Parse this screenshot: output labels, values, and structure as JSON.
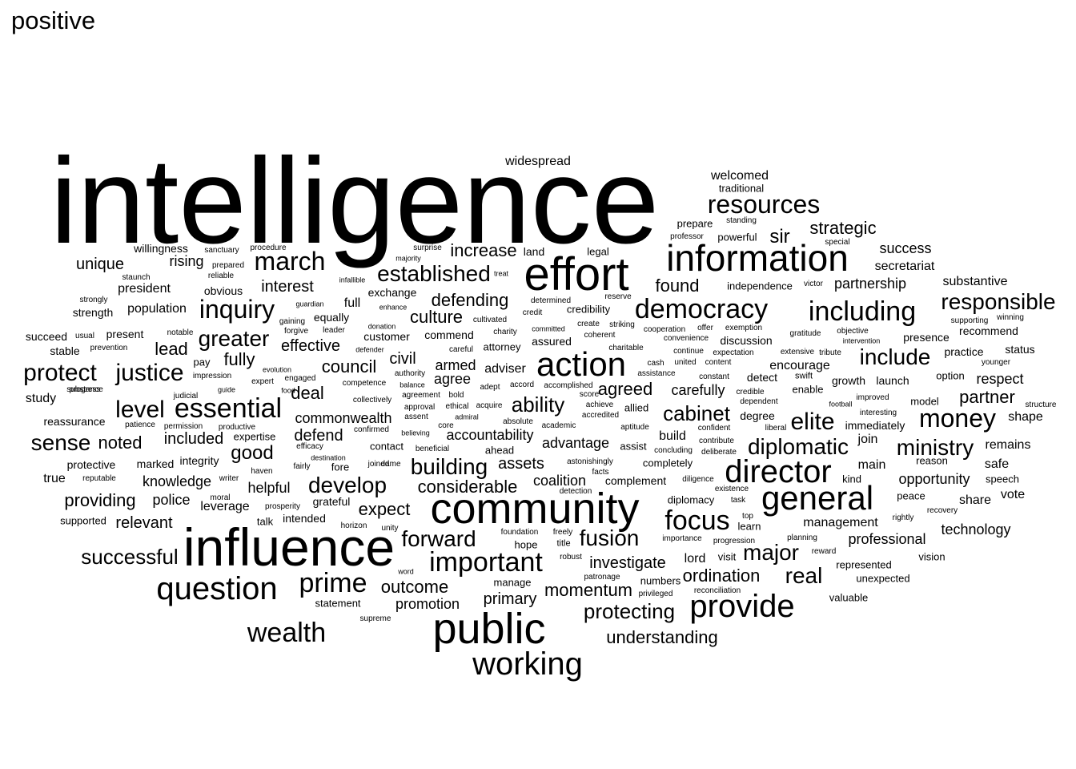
{
  "title": "positive",
  "colors": {
    "text": "#000000",
    "background": "#ffffff"
  },
  "words": [
    "intelligence",
    "influence",
    "community",
    "public",
    "effort",
    "information",
    "action",
    "general",
    "director",
    "working",
    "question",
    "provide",
    "democracy",
    "including",
    "important",
    "focus",
    "essential",
    "wealth",
    "prime",
    "inquiry",
    "march",
    "resources",
    "responsible",
    "money",
    "protect",
    "justice",
    "elite",
    "diplomatic",
    "building",
    "fusion",
    "forward",
    "level",
    "develop",
    "established",
    "major",
    "ministry",
    "real",
    "include",
    "cabinet",
    "greater",
    "ability",
    "successful",
    "sense",
    "considerable",
    "defending",
    "ordination",
    "momentum",
    "protecting",
    "outcome",
    "good",
    "sir",
    "strategic",
    "increase",
    "culture",
    "council",
    "understanding",
    "agreed",
    "carefully",
    "partner",
    "accountability",
    "noted",
    "included",
    "deal",
    "lead",
    "effective",
    "fully",
    "interest",
    "unique",
    "rising",
    "expect",
    "helpful",
    "knowledge",
    "providing",
    "relevant",
    "leverage",
    "police",
    "defend",
    "commonwealth",
    "investigate",
    "primary",
    "promotion",
    "coalition",
    "complement",
    "assets",
    "advantage",
    "adviser",
    "armed",
    "agree",
    "civil",
    "partnership",
    "found",
    "success",
    "secretariat",
    "substantive",
    "respect",
    "professional",
    "technology",
    "opportunity",
    "safe",
    "share",
    "vote",
    "management",
    "join",
    "build",
    "encourage",
    "president",
    "population",
    "strength",
    "present",
    "succeed",
    "stable",
    "study",
    "reassurance",
    "protective",
    "marked",
    "integrity",
    "true",
    "supported",
    "talk",
    "intended",
    "grateful",
    "equally",
    "obvious",
    "full",
    "exchange",
    "customer",
    "commend",
    "attorney",
    "assured",
    "credibility",
    "legal",
    "land",
    "widespread",
    "welcomed",
    "traditional",
    "powerful",
    "prepare",
    "independence",
    "discussion",
    "presence",
    "recommend",
    "practice",
    "status",
    "launch",
    "growth",
    "option",
    "structure",
    "shape",
    "remains",
    "speech",
    "reason",
    "kind",
    "main",
    "immediately",
    "degree",
    "detect",
    "swift",
    "enable",
    "model",
    "diplomacy",
    "lord",
    "visit",
    "numbers",
    "unexpected",
    "valuable",
    "represented",
    "vision",
    "completely",
    "assist",
    "allied",
    "expertise",
    "contact",
    "ahead",
    "hope",
    "title",
    "manage",
    "statement",
    "supreme",
    "willingness",
    "sanctuary",
    "procedure",
    "surprise",
    "majority",
    "infallible",
    "treat",
    "guardian",
    "enhance",
    "donation",
    "defender",
    "charity",
    "careful",
    "committed",
    "create",
    "striking",
    "coherent",
    "charitable",
    "cooperation",
    "offer",
    "exemption",
    "gratitude",
    "objective",
    "intervention",
    "supporting",
    "winning",
    "extensive",
    "tribute",
    "expectation",
    "continue",
    "convenience",
    "assistance",
    "constant",
    "credible",
    "dependent",
    "football",
    "improved",
    "younger",
    "accord",
    "accomplished",
    "score",
    "achieve",
    "accredited",
    "aptitude",
    "united",
    "concluding",
    "contribute",
    "deliberate",
    "confident",
    "content",
    "cash",
    "impression",
    "evolution",
    "engaged",
    "expert",
    "food",
    "competence",
    "authority",
    "balance",
    "agreement",
    "approval",
    "ethical",
    "acquire",
    "adept",
    "bold",
    "assent",
    "admiral",
    "absolute",
    "academic",
    "collectively",
    "confirmed",
    "believing",
    "core",
    "beneficial",
    "efficacy",
    "destination",
    "fairly",
    "haven",
    "writer",
    "moral",
    "prosperity",
    "productive",
    "permission",
    "judicial",
    "guide",
    "progress",
    "usual",
    "notable",
    "prevention",
    "strongly",
    "reliable",
    "staunch",
    "gaining",
    "forgive",
    "leader",
    "prepared",
    "horizon",
    "unity",
    "word",
    "foundation",
    "freely",
    "robust",
    "patronage",
    "privileged",
    "reconciliation",
    "importance",
    "progression",
    "planning",
    "reward",
    "top",
    "rightly",
    "recovery",
    "peace",
    "detection",
    "existence",
    "diligence",
    "task",
    "astonishingly",
    "facts",
    "patience",
    "pay",
    "reputable",
    "substance",
    "special",
    "victor",
    "professor",
    "standing",
    "liberal",
    "interesting",
    "reserve",
    "credit",
    "cultivated",
    "determined",
    "joined",
    "dame",
    "learn",
    "fore",
    "escape"
  ]
}
